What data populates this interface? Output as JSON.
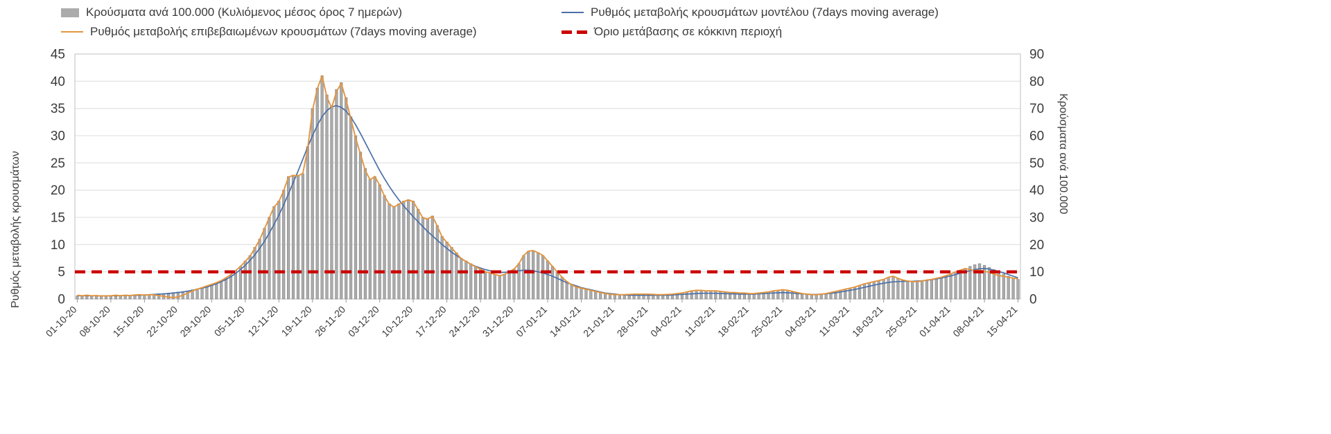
{
  "legend": {
    "items": [
      {
        "label": "Κρούσματα ανά 100.000 (Κυλιόμενος μέσος όρος 7 ημερών)",
        "marker": "bar-swatch",
        "color": "#ababab"
      },
      {
        "label": "Ρυθμός μεταβολής κρουσμάτων μοντέλου (7days moving average)",
        "marker": "line-swatch",
        "color": "#4a6fa8"
      },
      {
        "label": "Ρυθμός μεταβολής επιβεβαιωμένων κρουσμάτων (7days moving average)",
        "marker": "line-swatch",
        "color": "#e3953f"
      },
      {
        "label": "Όριο μετάβασης σε κόκκινη περιοχή",
        "marker": "dashed-swatch",
        "color": "#cc0000"
      }
    ]
  },
  "chart_data": {
    "type": "combo-bar-line",
    "grid": true,
    "legend_position": "top",
    "x_tick_labels": [
      "01-10-20",
      "08-10-20",
      "15-10-20",
      "22-10-20",
      "29-10-20",
      "05-11-20",
      "12-11-20",
      "19-11-20",
      "26-11-20",
      "03-12-20",
      "10-12-20",
      "17-12-20",
      "24-12-20",
      "31-12-20",
      "07-01-21",
      "14-01-21",
      "21-01-21",
      "28-01-21",
      "04-02-21",
      "11-02-21",
      "18-02-21",
      "25-02-21",
      "04-03-21",
      "11-03-21",
      "18-03-21",
      "25-03-21",
      "01-04-21",
      "08-04-21",
      "15-04-21"
    ],
    "x_days_per_tick": 7,
    "left_axis": {
      "label": "Ρυθμός μεταβολής κρουσμάτων",
      "min": 0,
      "max": 45,
      "step": 5
    },
    "right_axis": {
      "label": "Κρούσματα ανά 100.000",
      "min": 0,
      "max": 90,
      "step": 10
    },
    "threshold": {
      "label": "Όριο μετάβασης σε κόκκινη περιοχή",
      "axis": "left",
      "value": 5,
      "color": "#cc0000",
      "style": "dashed"
    },
    "series": [
      {
        "name": "Κρούσματα ανά 100.000 (Κυλιόμενος μέσος όρος 7 ημερών)",
        "type": "bar",
        "axis": "right",
        "color": "#ababab",
        "values": [
          1.2,
          1.2,
          1.3,
          1.2,
          1.2,
          1.1,
          1.2,
          1.2,
          1.3,
          1.4,
          1.4,
          1.4,
          1.5,
          1.6,
          1.6,
          1.7,
          1.8,
          1.9,
          2.0,
          2.2,
          2.4,
          2.6,
          2.8,
          3.0,
          3.4,
          3.8,
          4.2,
          4.8,
          5.4,
          6.0,
          6.8,
          7.8,
          9.0,
          10.4,
          12.0,
          14.0,
          16.0,
          19.0,
          22.0,
          26.0,
          30.0,
          34.0,
          36.0,
          40.0,
          45.0,
          45.5,
          45.5,
          46.0,
          56.0,
          70.0,
          77.5,
          82.0,
          75.0,
          71.0,
          77.0,
          79.5,
          74.0,
          67.0,
          60.0,
          54.0,
          48.0,
          44.0,
          45.0,
          42.0,
          38.0,
          35.0,
          34.0,
          35.0,
          36.0,
          36.5,
          36.0,
          33.0,
          30.0,
          29.5,
          30.5,
          27.0,
          23.0,
          21.0,
          19.0,
          17.0,
          15.0,
          14.0,
          13.0,
          12.0,
          11.0,
          10.0,
          9.6,
          9.0,
          8.6,
          9.0,
          10.0,
          11.0,
          13.0,
          16.0,
          17.6,
          17.6,
          17.0,
          16.0,
          14.0,
          12.0,
          10.0,
          8.0,
          6.4,
          5.2,
          4.4,
          4.0,
          3.6,
          3.2,
          2.8,
          2.4,
          2.0,
          1.8,
          1.6,
          1.6,
          1.6,
          1.7,
          1.8,
          1.8,
          1.8,
          1.8,
          1.7,
          1.6,
          1.6,
          1.7,
          1.8,
          2.0,
          2.2,
          2.6,
          3.0,
          3.2,
          3.2,
          3.0,
          3.0,
          3.0,
          2.8,
          2.6,
          2.4,
          2.4,
          2.2,
          2.2,
          2.0,
          2.0,
          2.2,
          2.4,
          2.6,
          3.0,
          3.2,
          3.4,
          3.2,
          2.8,
          2.4,
          2.0,
          1.8,
          1.6,
          1.6,
          1.8,
          2.0,
          2.4,
          2.8,
          3.2,
          3.6,
          4.0,
          4.4,
          5.0,
          5.6,
          6.0,
          6.4,
          6.8,
          7.2,
          8.0,
          8.4,
          7.6,
          7.0,
          6.6,
          6.4,
          6.4,
          6.6,
          7.0,
          7.2,
          7.6,
          8.0,
          8.6,
          9.2,
          10.0,
          10.6,
          11.2,
          12.0,
          12.6,
          13.0,
          12.4,
          11.6,
          10.8,
          10.0,
          9.2,
          8.4,
          7.8,
          7.2
        ]
      },
      {
        "name": "Ρυθμός μεταβολής κρουσμάτων μοντέλου (7days moving average)",
        "type": "line",
        "axis": "left",
        "color": "#4a6fa8",
        "width": 1.7,
        "values": [
          0.6,
          0.6,
          0.6,
          0.6,
          0.6,
          0.6,
          0.6,
          0.6,
          0.6,
          0.6,
          0.65,
          0.65,
          0.7,
          0.7,
          0.75,
          0.8,
          0.85,
          0.9,
          0.95,
          1.0,
          1.1,
          1.2,
          1.3,
          1.45,
          1.6,
          1.8,
          2.0,
          2.2,
          2.5,
          2.8,
          3.2,
          3.6,
          4.1,
          4.7,
          5.4,
          6.2,
          7.1,
          8.1,
          9.3,
          10.6,
          12.1,
          13.7,
          15.4,
          17.3,
          19.3,
          21.4,
          23.5,
          25.7,
          27.9,
          30.0,
          31.9,
          33.5,
          34.6,
          35.3,
          35.5,
          35.2,
          34.5,
          33.4,
          32.0,
          30.4,
          28.7,
          27.0,
          25.3,
          23.6,
          22.1,
          20.7,
          19.4,
          18.2,
          17.1,
          16.1,
          15.1,
          14.2,
          13.3,
          12.4,
          11.6,
          10.8,
          10.0,
          9.3,
          8.6,
          8.0,
          7.4,
          6.9,
          6.4,
          6.0,
          5.7,
          5.4,
          5.2,
          5.0,
          4.9,
          4.9,
          5.0,
          5.1,
          5.2,
          5.3,
          5.3,
          5.2,
          5.0,
          4.8,
          4.5,
          4.2,
          3.8,
          3.4,
          3.0,
          2.7,
          2.4,
          2.1,
          1.9,
          1.7,
          1.5,
          1.3,
          1.1,
          1.0,
          0.9,
          0.8,
          0.75,
          0.7,
          0.7,
          0.7,
          0.7,
          0.7,
          0.7,
          0.7,
          0.7,
          0.7,
          0.75,
          0.8,
          0.85,
          0.9,
          0.95,
          1.0,
          1.05,
          1.05,
          1.05,
          1.05,
          1.0,
          1.0,
          0.95,
          0.95,
          0.9,
          0.9,
          0.9,
          0.9,
          0.95,
          1.0,
          1.05,
          1.1,
          1.15,
          1.2,
          1.15,
          1.1,
          1.0,
          0.95,
          0.9,
          0.85,
          0.85,
          0.9,
          0.95,
          1.05,
          1.15,
          1.3,
          1.45,
          1.6,
          1.75,
          1.95,
          2.15,
          2.35,
          2.55,
          2.75,
          2.9,
          3.05,
          3.15,
          3.2,
          3.25,
          3.25,
          3.25,
          3.3,
          3.35,
          3.45,
          3.55,
          3.7,
          3.85,
          4.05,
          4.25,
          4.5,
          4.75,
          5.0,
          5.2,
          5.4,
          5.55,
          5.6,
          5.5,
          5.3,
          5.05,
          4.8,
          4.5,
          4.2,
          3.9
        ]
      },
      {
        "name": "Ρυθμός μεταβολής επιβεβαιωμένων κρουσμάτων (7days moving average)",
        "type": "line",
        "axis": "left",
        "color": "#e3953f",
        "width": 1.9,
        "values": [
          0.7,
          0.6,
          0.7,
          0.6,
          0.65,
          0.55,
          0.6,
          0.6,
          0.7,
          0.6,
          0.7,
          0.65,
          0.75,
          0.8,
          0.7,
          0.8,
          0.75,
          0.65,
          0.5,
          0.35,
          0.25,
          0.4,
          0.7,
          1.1,
          1.5,
          1.8,
          2.1,
          2.4,
          2.7,
          3.0,
          3.4,
          3.9,
          4.5,
          5.2,
          6.0,
          6.9,
          7.9,
          9.3,
          10.9,
          12.9,
          14.9,
          16.9,
          17.9,
          19.9,
          22.4,
          22.7,
          22.6,
          23.1,
          27.6,
          34.6,
          38.6,
          41.0,
          37.1,
          35.1,
          38.1,
          39.6,
          36.6,
          33.1,
          29.6,
          26.6,
          23.6,
          21.9,
          22.5,
          20.9,
          18.9,
          17.4,
          16.9,
          17.4,
          17.9,
          18.2,
          17.9,
          16.4,
          14.9,
          14.7,
          15.2,
          13.4,
          11.4,
          10.4,
          9.4,
          8.4,
          7.4,
          6.9,
          6.4,
          5.9,
          5.5,
          5.0,
          4.8,
          4.5,
          4.3,
          4.5,
          5.0,
          5.5,
          6.5,
          8.0,
          8.8,
          8.9,
          8.5,
          8.0,
          7.0,
          6.0,
          5.0,
          4.0,
          3.2,
          2.6,
          2.2,
          2.0,
          1.8,
          1.6,
          1.4,
          1.2,
          1.0,
          0.9,
          0.8,
          0.8,
          0.8,
          0.85,
          0.9,
          0.9,
          0.9,
          0.9,
          0.85,
          0.8,
          0.8,
          0.85,
          0.9,
          1.0,
          1.1,
          1.3,
          1.5,
          1.6,
          1.6,
          1.5,
          1.5,
          1.5,
          1.4,
          1.3,
          1.2,
          1.2,
          1.1,
          1.1,
          1.0,
          1.0,
          1.1,
          1.2,
          1.3,
          1.5,
          1.6,
          1.7,
          1.6,
          1.4,
          1.2,
          1.0,
          0.9,
          0.8,
          0.8,
          0.9,
          1.0,
          1.2,
          1.4,
          1.6,
          1.8,
          2.0,
          2.2,
          2.5,
          2.8,
          3.0,
          3.2,
          3.4,
          3.6,
          4.0,
          4.2,
          3.8,
          3.5,
          3.3,
          3.2,
          3.2,
          3.3,
          3.5,
          3.6,
          3.8,
          4.0,
          4.3,
          4.6,
          5.0,
          5.3,
          5.6,
          5.4,
          5.2,
          5.3,
          5.1,
          4.9,
          4.6,
          4.3,
          4.2,
          4.0,
          3.85,
          3.7
        ]
      }
    ]
  }
}
